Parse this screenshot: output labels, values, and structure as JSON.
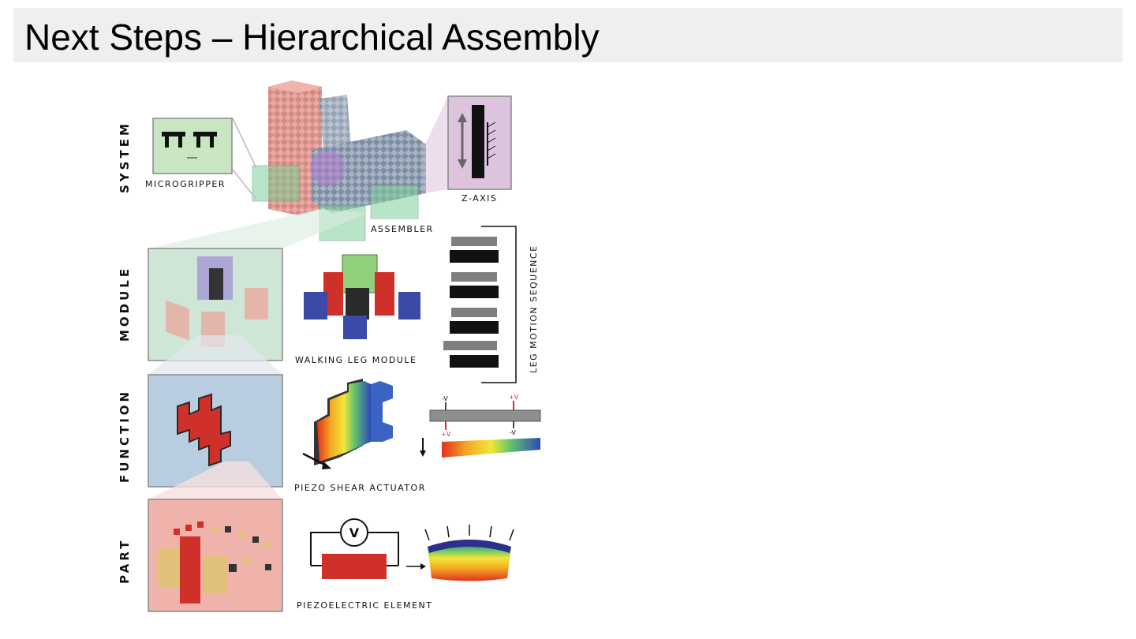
{
  "slide": {
    "title": "Next Steps – Hierarchical Assembly"
  },
  "levels": {
    "system": "SYSTEM",
    "module": "MODULE",
    "function": "FUNCTION",
    "part": "PART"
  },
  "labels": {
    "microgripper": "MICROGRIPPER",
    "z_axis": "Z-AXIS",
    "assembler": "ASSEMBLER",
    "walking_leg_module": "WALKING LEG MODULE",
    "leg_motion_sequence": "LEG MOTION SEQUENCE",
    "piezo_shear_actuator": "PIEZO SHEAR ACTUATOR",
    "piezoelectric_element": "PIEZOELECTRIC ELEMENT"
  },
  "voltages": {
    "neg_left": "-V",
    "pos_right": "+V",
    "pos_left": "+V",
    "neg_right": "-V",
    "meter": "V"
  },
  "colors": {
    "system_tint": "#c8e6c1",
    "module_tint": "#cfe6d6",
    "function_tint": "#b9cde0",
    "part_tint": "#efb3ac",
    "zaxis_tint": "#dcc3de",
    "red_block": "#d0302a",
    "blue_block": "#3a4aa6",
    "gray_bar": "#7f7f7f"
  }
}
